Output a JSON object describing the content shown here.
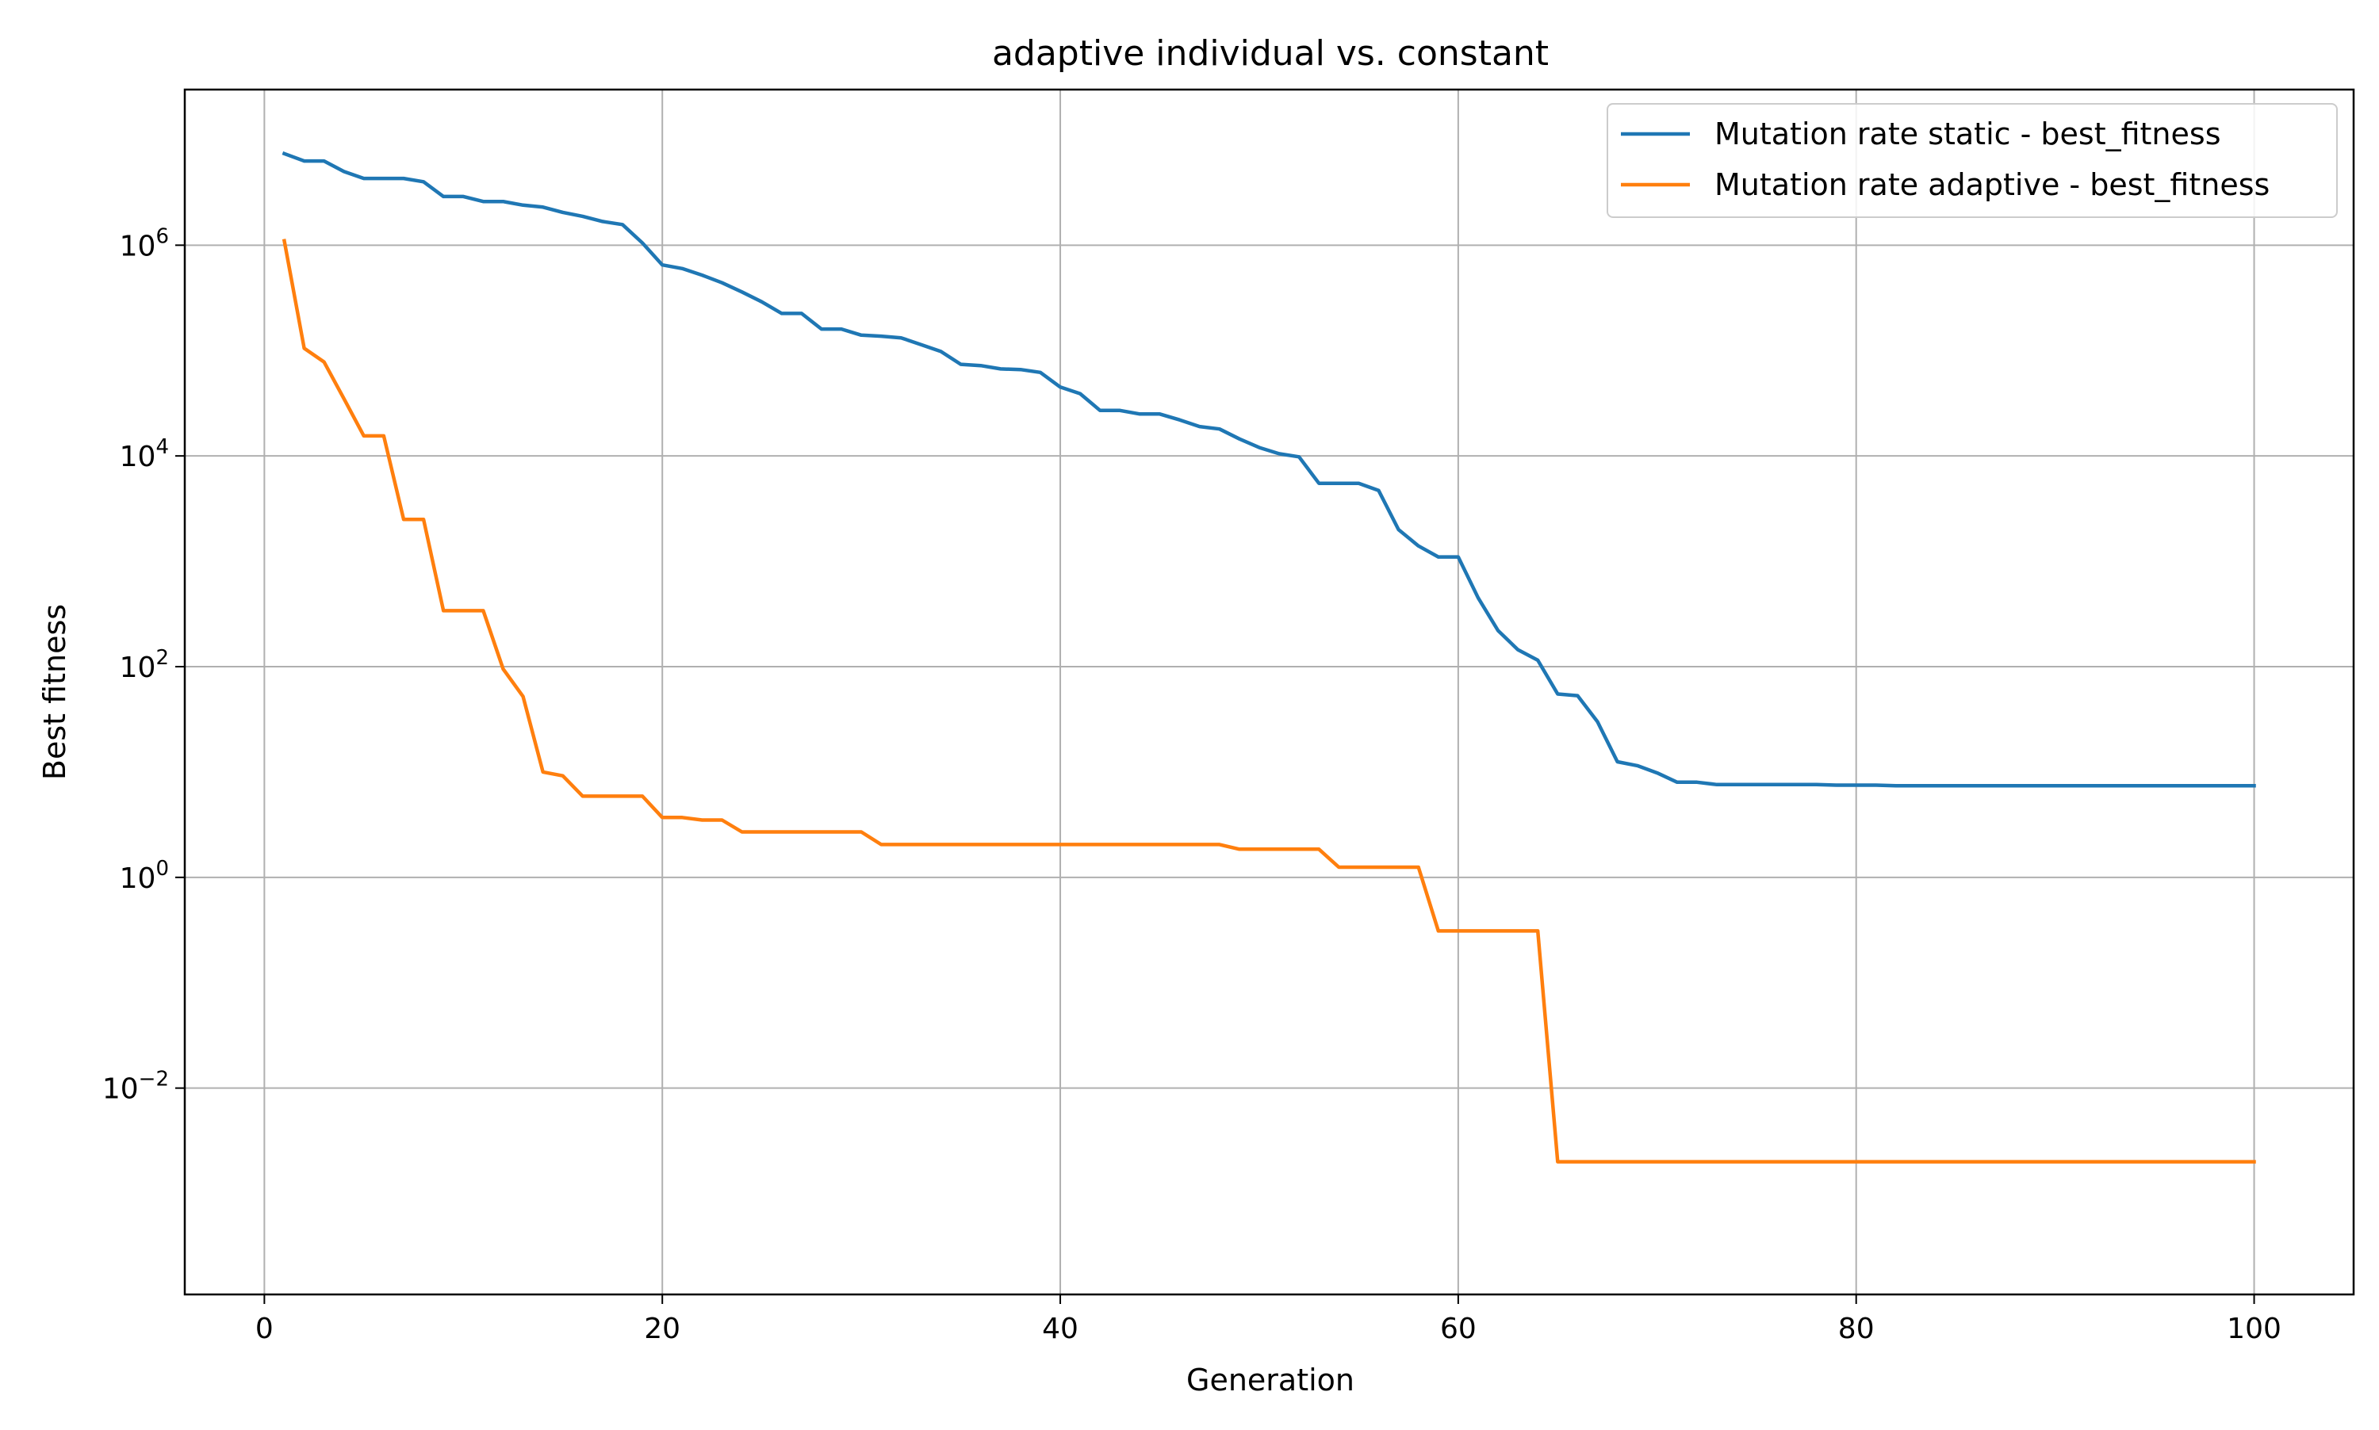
{
  "chart_data": {
    "type": "line",
    "title": "adaptive individual vs. constant",
    "xlabel": "Generation",
    "ylabel": "Best fitness",
    "xlim": [
      -4,
      105
    ],
    "ylim": [
      0.00011,
      30000000
    ],
    "yscale": "log",
    "grid": true,
    "legend_position": "top-right",
    "x_ticks": [
      0,
      20,
      40,
      60,
      80,
      100
    ],
    "x_tick_labels": [
      "0",
      "20",
      "40",
      "60",
      "80",
      "100"
    ],
    "y_ticks": [
      0.01,
      1,
      100,
      10000,
      1000000
    ],
    "y_tick_labels": [
      {
        "base": "10",
        "exp": "−2"
      },
      {
        "base": "10",
        "exp": "0"
      },
      {
        "base": "10",
        "exp": "2"
      },
      {
        "base": "10",
        "exp": "4"
      },
      {
        "base": "10",
        "exp": "6"
      }
    ],
    "x": [
      1,
      2,
      3,
      4,
      5,
      6,
      7,
      8,
      9,
      10,
      11,
      12,
      13,
      14,
      15,
      16,
      17,
      18,
      19,
      20,
      21,
      22,
      23,
      24,
      25,
      26,
      27,
      28,
      29,
      30,
      31,
      32,
      33,
      34,
      35,
      36,
      37,
      38,
      39,
      40,
      41,
      42,
      43,
      44,
      45,
      46,
      47,
      48,
      49,
      50,
      51,
      52,
      53,
      54,
      55,
      56,
      57,
      58,
      59,
      60,
      61,
      62,
      63,
      64,
      65,
      66,
      67,
      68,
      69,
      70,
      71,
      72,
      73,
      74,
      75,
      76,
      77,
      78,
      79,
      80,
      81,
      82,
      83,
      84,
      85,
      86,
      87,
      88,
      89,
      90,
      91,
      92,
      93,
      94,
      95,
      96,
      97,
      98,
      99,
      100
    ],
    "series": [
      {
        "name": "Mutation rate static - best_fitness",
        "color": "#1f77b4",
        "values": [
          7400000,
          6300000,
          6300000,
          5000000,
          4300000,
          4300000,
          4300000,
          4000000,
          2900000,
          2900000,
          2600000,
          2600000,
          2400000,
          2300000,
          2050000,
          1880000,
          1680000,
          1570000,
          1050000,
          650000,
          600000,
          520000,
          440000,
          360000,
          290000,
          225000,
          225000,
          160000,
          160000,
          140000,
          137000,
          132000,
          114000,
          98000,
          74000,
          72000,
          67000,
          66000,
          62000,
          45000,
          39000,
          27000,
          27000,
          25000,
          25000,
          22000,
          19000,
          18000,
          14500,
          12000,
          10500,
          9800,
          5500,
          5500,
          5500,
          4700,
          2000,
          1400,
          1100,
          1100,
          450,
          220,
          145,
          115,
          55,
          53,
          30,
          12.5,
          11.5,
          9.8,
          8.0,
          8.0,
          7.6,
          7.6,
          7.6,
          7.6,
          7.6,
          7.6,
          7.5,
          7.5,
          7.5,
          7.4,
          7.4,
          7.4,
          7.4,
          7.4,
          7.4,
          7.4,
          7.4,
          7.4,
          7.4,
          7.4,
          7.4,
          7.4,
          7.4,
          7.4,
          7.4,
          7.4,
          7.4,
          7.4
        ]
      },
      {
        "name": "Mutation rate adaptive - best_fitness",
        "color": "#ff7f0e",
        "values": [
          1100000,
          105000,
          78000,
          35000,
          15500,
          15500,
          2500,
          2500,
          340,
          340,
          340,
          95,
          52,
          10,
          9.2,
          5.9,
          5.9,
          5.9,
          5.9,
          3.7,
          3.7,
          3.5,
          3.5,
          2.7,
          2.7,
          2.7,
          2.7,
          2.7,
          2.7,
          2.7,
          2.05,
          2.05,
          2.05,
          2.05,
          2.05,
          2.05,
          2.05,
          2.05,
          2.05,
          2.05,
          2.05,
          2.05,
          2.05,
          2.05,
          2.05,
          2.05,
          2.05,
          2.05,
          1.85,
          1.85,
          1.85,
          1.85,
          1.85,
          1.25,
          1.25,
          1.25,
          1.25,
          1.25,
          0.31,
          0.31,
          0.31,
          0.31,
          0.31,
          0.31,
          0.002,
          0.002,
          0.002,
          0.002,
          0.002,
          0.002,
          0.002,
          0.002,
          0.002,
          0.002,
          0.002,
          0.002,
          0.002,
          0.002,
          0.002,
          0.002,
          0.002,
          0.002,
          0.002,
          0.002,
          0.002,
          0.002,
          0.002,
          0.002,
          0.002,
          0.002,
          0.002,
          0.002,
          0.002,
          0.002,
          0.002,
          0.002,
          0.002,
          0.002,
          0.002,
          0.002
        ]
      }
    ]
  }
}
